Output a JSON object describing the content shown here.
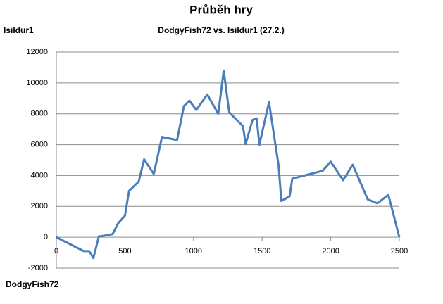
{
  "chart_data": {
    "type": "line",
    "title": "Průběh hry",
    "subtitle": "DodgyFish72 vs. Isildur1 (27.2.)",
    "y_label_top": "Isildur1",
    "y_label_bottom": "DodgyFish72",
    "x": [
      0,
      200,
      240,
      270,
      310,
      350,
      410,
      450,
      500,
      530,
      600,
      640,
      710,
      770,
      880,
      930,
      970,
      1020,
      1100,
      1180,
      1220,
      1260,
      1360,
      1380,
      1430,
      1460,
      1480,
      1550,
      1620,
      1640,
      1700,
      1720,
      1940,
      2000,
      2090,
      2160,
      2270,
      2340,
      2420,
      2500
    ],
    "series": [
      {
        "name": "Isildur1",
        "color": "#4a7ebb",
        "values": [
          0,
          -900,
          -900,
          -1350,
          50,
          100,
          200,
          900,
          1400,
          3000,
          3600,
          5050,
          4100,
          6500,
          6300,
          8500,
          8850,
          8250,
          9250,
          8000,
          10800,
          8100,
          7200,
          6050,
          7600,
          7700,
          6000,
          8750,
          4650,
          2350,
          2650,
          3800,
          4300,
          4900,
          3700,
          4700,
          2450,
          2200,
          2750,
          0
        ]
      }
    ],
    "xlim": [
      0,
      2500
    ],
    "xticks": [
      0,
      500,
      1000,
      1500,
      2000,
      2500
    ],
    "ylim": [
      -2000,
      12000
    ],
    "yticks": [
      -2000,
      0,
      2000,
      4000,
      6000,
      8000,
      10000,
      12000
    ],
    "grid": true
  }
}
